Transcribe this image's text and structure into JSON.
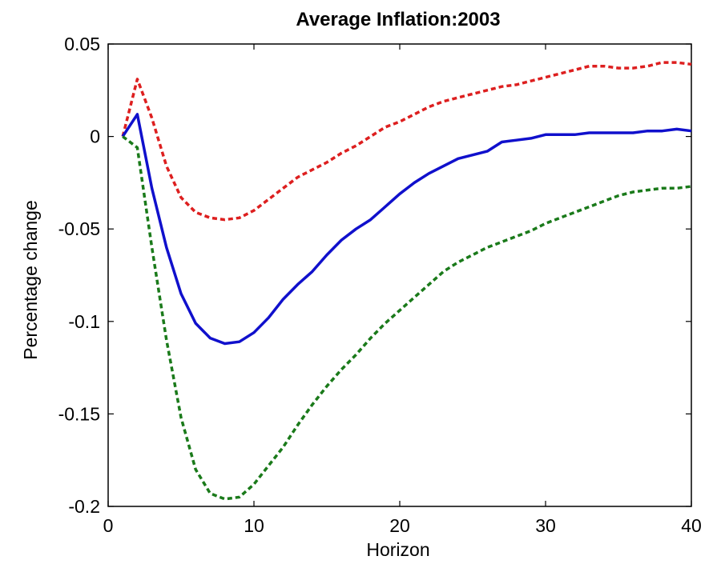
{
  "chart_data": {
    "type": "line",
    "title": "Average Inflation:2003",
    "xlabel": "Horizon",
    "ylabel": "Percentage change",
    "xlim": [
      0,
      40
    ],
    "ylim": [
      -0.2,
      0.05
    ],
    "xticks": [
      0,
      10,
      20,
      30,
      40
    ],
    "xtick_labels": [
      "0",
      "10",
      "20",
      "30",
      "40"
    ],
    "yticks": [
      0.05,
      0,
      -0.05,
      -0.1,
      -0.15,
      -0.2
    ],
    "ytick_labels": [
      "0.05",
      "0",
      "-0.05",
      "-0.1",
      "-0.15",
      "-0.2"
    ],
    "grid": false,
    "legend": "none",
    "series": [
      {
        "color": "#dd1f1f",
        "line_style": "dashed",
        "x": [
          1,
          2,
          3,
          4,
          5,
          6,
          7,
          8,
          9,
          10,
          11,
          12,
          13,
          14,
          15,
          16,
          17,
          18,
          19,
          20,
          21,
          22,
          23,
          24,
          25,
          26,
          27,
          28,
          29,
          30,
          31,
          32,
          33,
          34,
          35,
          36,
          37,
          38,
          39,
          40
        ],
        "values": [
          0.0,
          0.031,
          0.01,
          -0.016,
          -0.033,
          -0.041,
          -0.044,
          -0.045,
          -0.044,
          -0.04,
          -0.034,
          -0.028,
          -0.022,
          -0.018,
          -0.014,
          -0.009,
          -0.005,
          0.0,
          0.005,
          0.008,
          0.012,
          0.016,
          0.019,
          0.021,
          0.023,
          0.025,
          0.027,
          0.028,
          0.03,
          0.032,
          0.034,
          0.036,
          0.038,
          0.038,
          0.037,
          0.037,
          0.038,
          0.04,
          0.04,
          0.039
        ]
      },
      {
        "color": "#1010cc",
        "line_style": "solid",
        "x": [
          1,
          2,
          3,
          4,
          5,
          6,
          7,
          8,
          9,
          10,
          11,
          12,
          13,
          14,
          15,
          16,
          17,
          18,
          19,
          20,
          21,
          22,
          23,
          24,
          25,
          26,
          27,
          28,
          29,
          30,
          31,
          32,
          33,
          34,
          35,
          36,
          37,
          38,
          39,
          40
        ],
        "values": [
          0.0,
          0.012,
          -0.028,
          -0.06,
          -0.085,
          -0.101,
          -0.109,
          -0.112,
          -0.111,
          -0.106,
          -0.098,
          -0.088,
          -0.08,
          -0.073,
          -0.064,
          -0.056,
          -0.05,
          -0.045,
          -0.038,
          -0.031,
          -0.025,
          -0.02,
          -0.016,
          -0.012,
          -0.01,
          -0.008,
          -0.003,
          -0.002,
          -0.001,
          0.001,
          0.001,
          0.001,
          0.002,
          0.002,
          0.002,
          0.002,
          0.003,
          0.003,
          0.004,
          0.003
        ]
      },
      {
        "color": "#1a7a1a",
        "line_style": "dashed",
        "x": [
          1,
          2,
          3,
          4,
          5,
          6,
          7,
          8,
          9,
          10,
          11,
          12,
          13,
          14,
          15,
          16,
          17,
          18,
          19,
          20,
          21,
          22,
          23,
          24,
          25,
          26,
          27,
          28,
          29,
          30,
          31,
          32,
          33,
          34,
          35,
          36,
          37,
          38,
          39,
          40
        ],
        "values": [
          0.0,
          -0.006,
          -0.06,
          -0.11,
          -0.152,
          -0.18,
          -0.193,
          -0.196,
          -0.195,
          -0.188,
          -0.178,
          -0.168,
          -0.156,
          -0.145,
          -0.135,
          -0.126,
          -0.118,
          -0.109,
          -0.101,
          -0.094,
          -0.087,
          -0.08,
          -0.073,
          -0.068,
          -0.064,
          -0.06,
          -0.057,
          -0.054,
          -0.051,
          -0.047,
          -0.044,
          -0.041,
          -0.038,
          -0.035,
          -0.032,
          -0.03,
          -0.029,
          -0.028,
          -0.028,
          -0.027
        ]
      }
    ]
  }
}
